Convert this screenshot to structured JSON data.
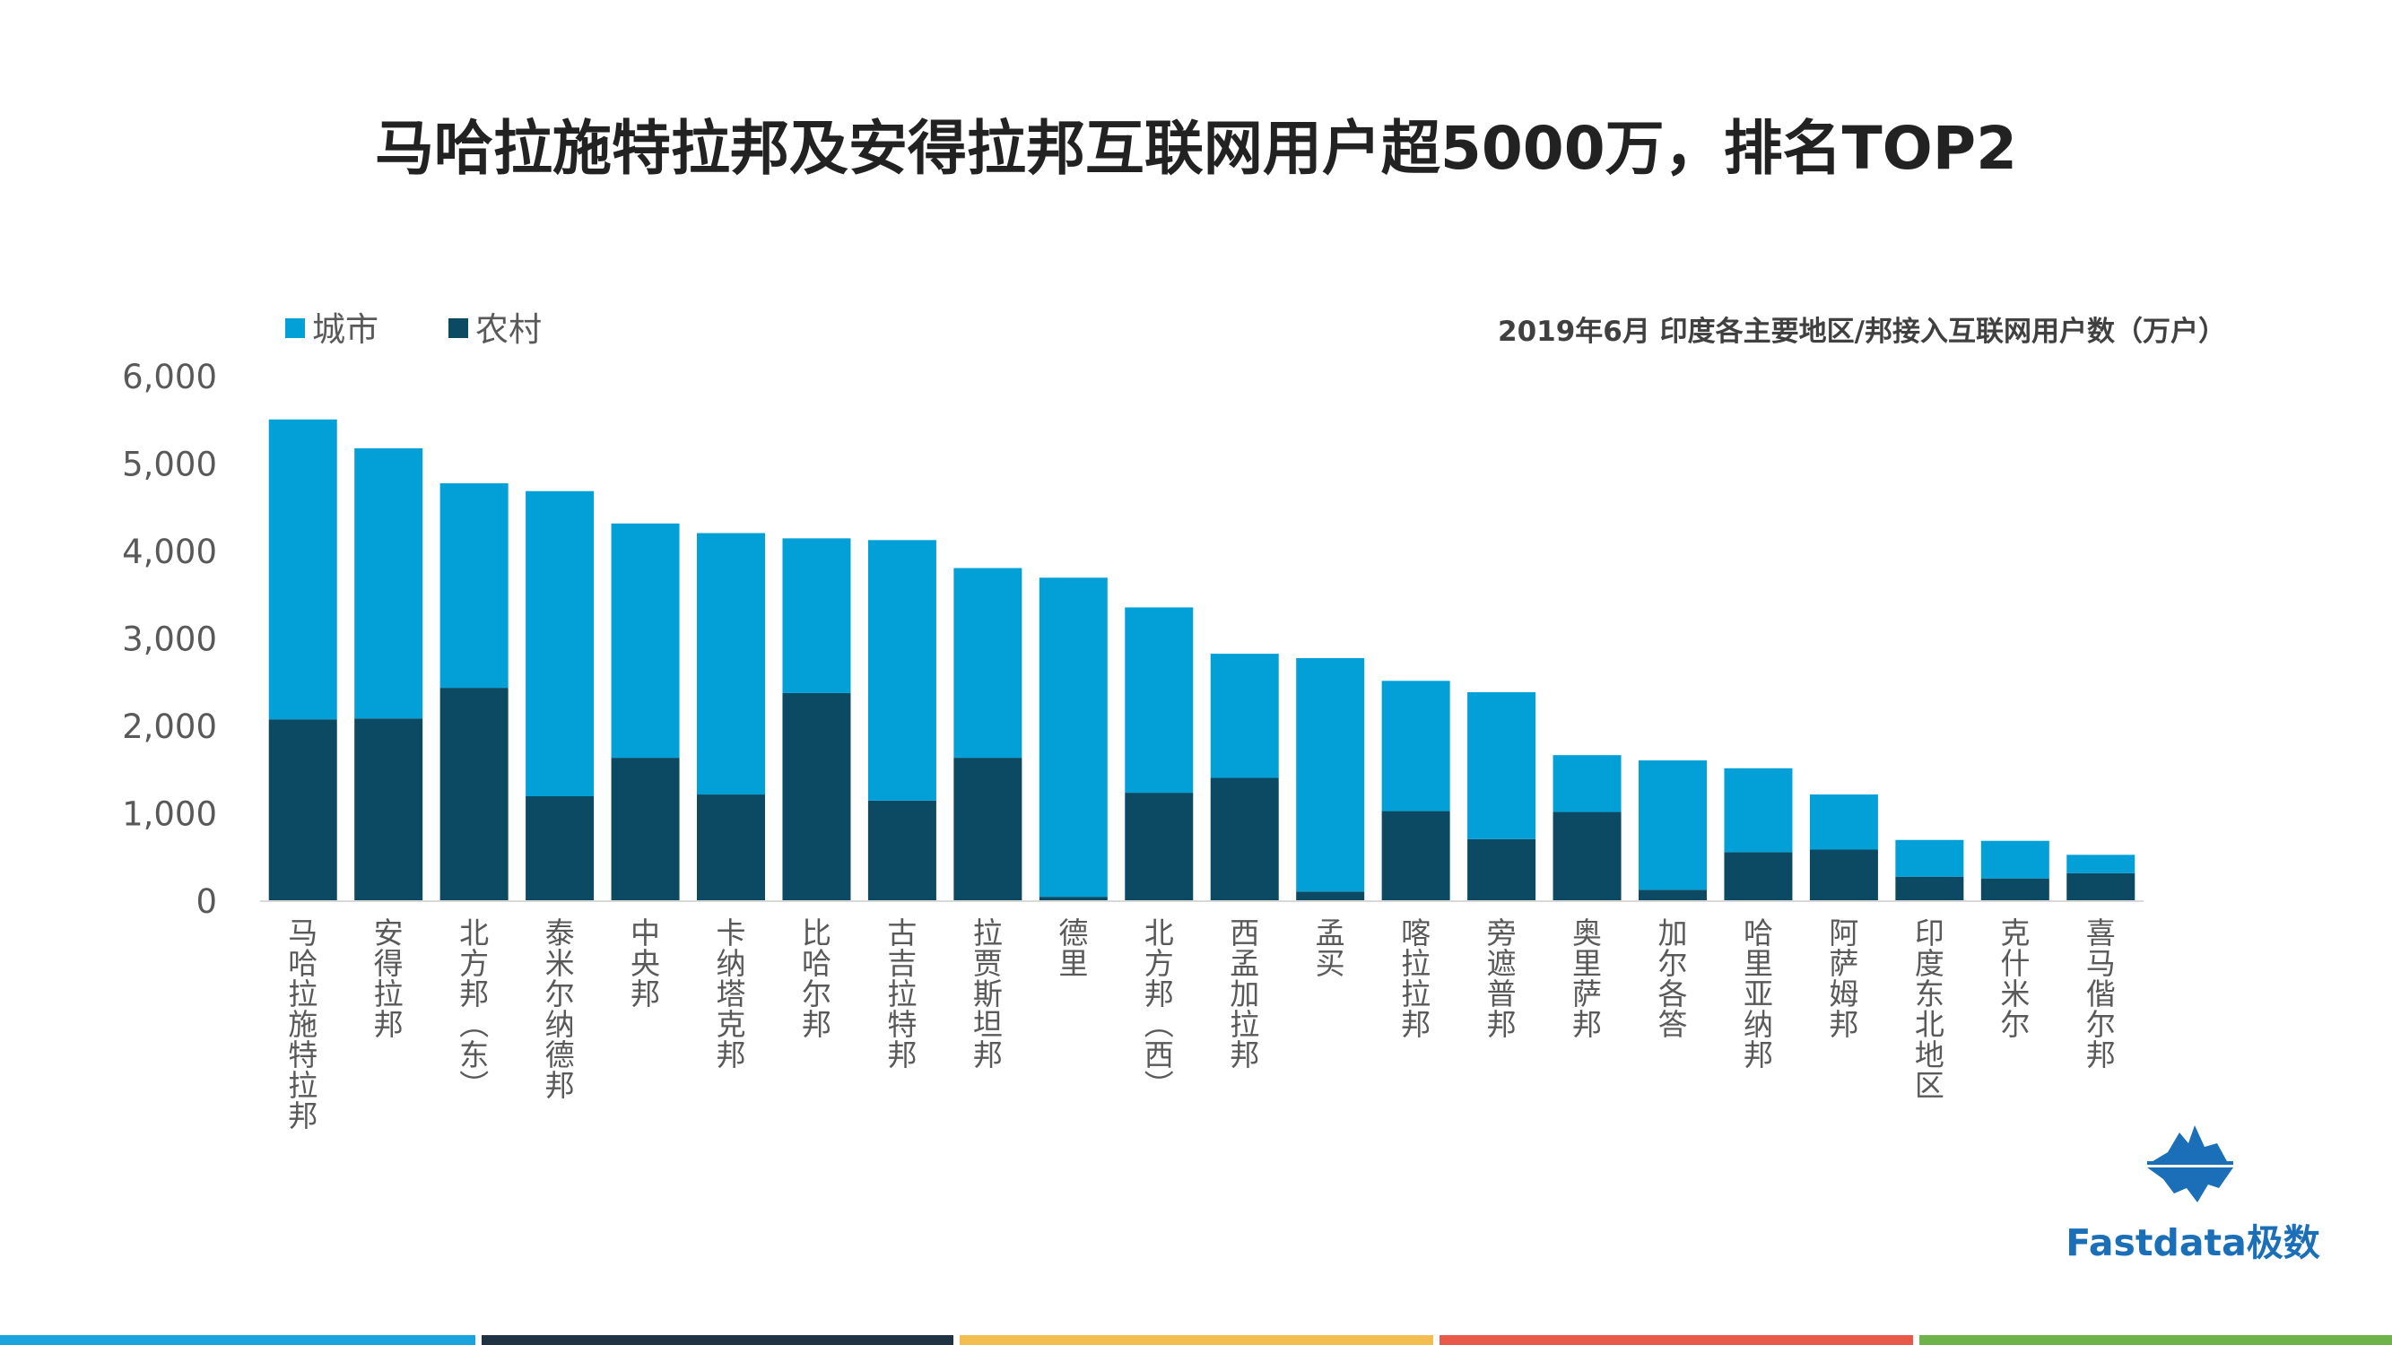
{
  "title": "马哈拉施特拉邦及安得拉邦互联网用户超5000万，排名TOP2",
  "colors": {
    "urban": "#03a0d8",
    "rural": "#0b4a62",
    "axis": "#d9d9d9",
    "footer": [
      "#1aa3dc",
      "#1f3344",
      "#f3be4f",
      "#e8594a",
      "#6eb24a"
    ]
  },
  "logo": {
    "icon": "fastdata-iceberg-logo-icon",
    "text": "Fastdata极数"
  },
  "chart_data": {
    "type": "bar",
    "stacked": true,
    "title": "",
    "subtitle": "2019年6月 印度各主要地区/邦接入互联网用户数（万户）",
    "xlabel": "",
    "ylabel": "",
    "ylim": [
      0,
      6000
    ],
    "yticks": [
      "0",
      "1,000",
      "2,000",
      "3,000",
      "4,000",
      "5,000",
      "6,000"
    ],
    "legend_position": "top-left",
    "grid": false,
    "categories": [
      "马哈拉施特拉邦",
      "安得拉邦",
      "北方邦（东）",
      "泰米尔纳德邦",
      "中央邦",
      "卡纳塔克邦",
      "比哈尔邦",
      "古吉拉特邦",
      "拉贾斯坦邦",
      "德里",
      "北方邦（西）",
      "西孟加拉邦",
      "孟买",
      "喀拉拉邦",
      "旁遮普邦",
      "奥里萨邦",
      "加尔各答",
      "哈里亚纳邦",
      "阿萨姆邦",
      "印度东北地区",
      "克什米尔",
      "喜马偕尔邦"
    ],
    "series": [
      {
        "name": "城市",
        "values": [
          3430,
          3090,
          2340,
          3490,
          2680,
          2990,
          1770,
          2980,
          2170,
          3650,
          2120,
          1420,
          2670,
          1490,
          1680,
          650,
          1480,
          960,
          630,
          420,
          430,
          210
        ]
      },
      {
        "name": "农村",
        "values": [
          2080,
          2090,
          2440,
          1200,
          1640,
          1220,
          2380,
          1150,
          1640,
          50,
          1240,
          1410,
          110,
          1030,
          710,
          1020,
          130,
          560,
          590,
          280,
          260,
          320
        ]
      }
    ]
  }
}
